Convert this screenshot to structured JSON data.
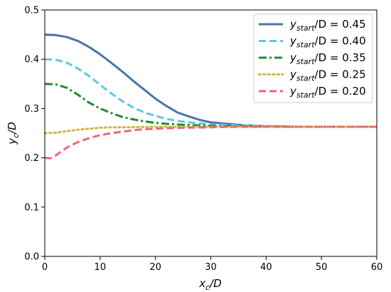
{
  "chart_data": {
    "type": "line",
    "xlabel": {
      "main": "x",
      "sub": "c",
      "rest": "/D"
    },
    "ylabel": {
      "main": "y",
      "sub": "c",
      "rest": "/D"
    },
    "xlim": [
      0,
      60
    ],
    "ylim": [
      0,
      0.5
    ],
    "xticks": [
      0,
      10,
      20,
      30,
      40,
      50,
      60
    ],
    "yticks": [
      0.0,
      0.1,
      0.2,
      0.3,
      0.4,
      0.5
    ],
    "xtick_labels": [
      "0",
      "10",
      "20",
      "30",
      "40",
      "50",
      "60"
    ],
    "ytick_labels": [
      "0.0",
      "0.1",
      "0.2",
      "0.3",
      "0.4",
      "0.5"
    ],
    "grid": false,
    "legend": {
      "position": "top-right",
      "prefix": "y",
      "sub": "start",
      "suffix": "/D = "
    },
    "series": [
      {
        "name": "0.45",
        "color": "#4a74a8",
        "style": "solid",
        "x": [
          0,
          2,
          4,
          6,
          8,
          10,
          12,
          14,
          16,
          18,
          20,
          22,
          24,
          26,
          28,
          30,
          32,
          34,
          36,
          38,
          40,
          42,
          45,
          50,
          55,
          60
        ],
        "y": [
          0.45,
          0.449,
          0.445,
          0.437,
          0.425,
          0.41,
          0.393,
          0.375,
          0.356,
          0.338,
          0.32,
          0.305,
          0.292,
          0.284,
          0.277,
          0.272,
          0.27,
          0.268,
          0.266,
          0.265,
          0.264,
          0.264,
          0.263,
          0.263,
          0.263,
          0.263
        ]
      },
      {
        "name": "0.40",
        "color": "#5bc8e6",
        "style": "dashed",
        "x": [
          0,
          2,
          4,
          6,
          8,
          10,
          12,
          14,
          16,
          18,
          20,
          22,
          24,
          26,
          28,
          30,
          35,
          40,
          45,
          50,
          55,
          60
        ],
        "y": [
          0.4,
          0.399,
          0.393,
          0.381,
          0.366,
          0.348,
          0.331,
          0.315,
          0.302,
          0.292,
          0.285,
          0.279,
          0.275,
          0.272,
          0.27,
          0.268,
          0.266,
          0.264,
          0.263,
          0.263,
          0.263,
          0.263
        ]
      },
      {
        "name": "0.35",
        "color": "#228833",
        "style": "dashdot",
        "x": [
          0,
          2,
          4,
          6,
          8,
          10,
          12,
          14,
          16,
          18,
          20,
          22,
          25,
          30,
          35,
          40,
          45,
          50,
          55,
          60
        ],
        "y": [
          0.35,
          0.349,
          0.342,
          0.328,
          0.312,
          0.3,
          0.291,
          0.283,
          0.278,
          0.274,
          0.271,
          0.269,
          0.267,
          0.265,
          0.264,
          0.263,
          0.263,
          0.263,
          0.263,
          0.263
        ]
      },
      {
        "name": "0.25",
        "color": "#ccbb44",
        "style": "dotted",
        "x": [
          0,
          2,
          4,
          6,
          8,
          10,
          12,
          15,
          20,
          25,
          30,
          40,
          50,
          60
        ],
        "y": [
          0.25,
          0.251,
          0.254,
          0.257,
          0.259,
          0.261,
          0.262,
          0.262,
          0.263,
          0.263,
          0.263,
          0.263,
          0.263,
          0.263
        ]
      },
      {
        "name": "0.20",
        "color": "#ee6677",
        "style": "dashed",
        "x": [
          0,
          1,
          2,
          3,
          4,
          6,
          8,
          10,
          12,
          14,
          16,
          18,
          20,
          22,
          25,
          30,
          35,
          40,
          50,
          60
        ],
        "y": [
          0.2,
          0.199,
          0.205,
          0.213,
          0.221,
          0.232,
          0.24,
          0.246,
          0.25,
          0.253,
          0.256,
          0.258,
          0.259,
          0.26,
          0.261,
          0.262,
          0.263,
          0.263,
          0.263,
          0.263
        ]
      }
    ]
  }
}
